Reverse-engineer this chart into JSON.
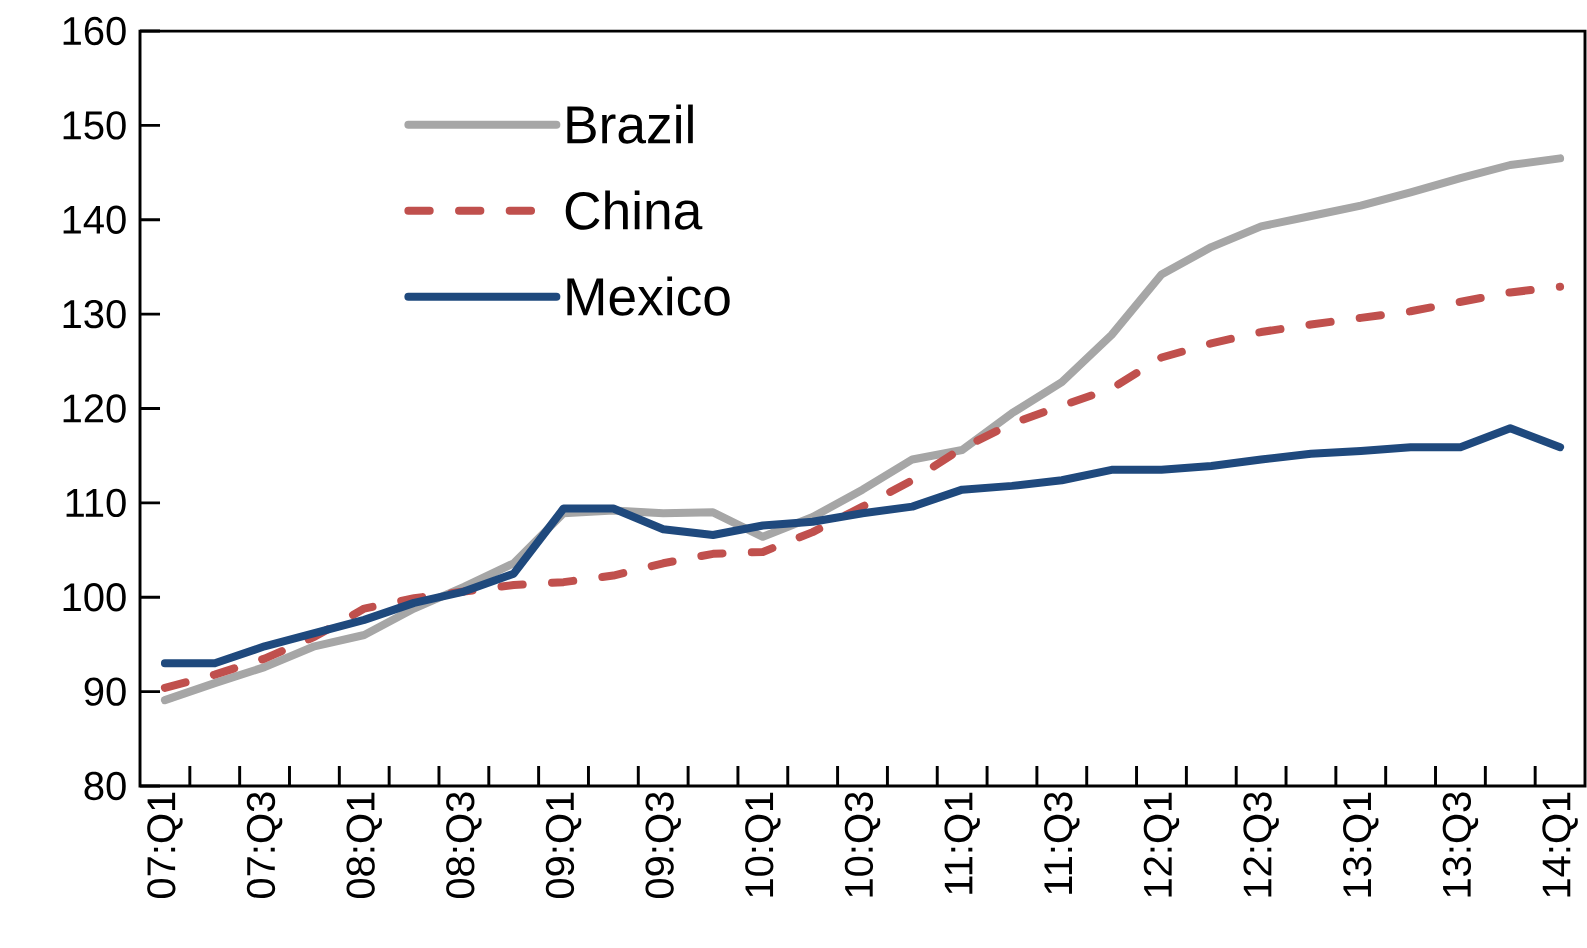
{
  "chart_data": {
    "type": "line",
    "categories": [
      "07:Q1",
      null,
      "07:Q3",
      null,
      "08:Q1",
      null,
      "08:Q3",
      null,
      "09:Q1",
      null,
      "09:Q3",
      null,
      "10:Q1",
      null,
      "10:Q3",
      null,
      "11:Q1",
      null,
      "11:Q3",
      null,
      "12:Q1",
      null,
      "12:Q3",
      null,
      "13:Q1",
      null,
      "13:Q3",
      null,
      "14:Q1"
    ],
    "series": [
      {
        "name": "Brazil",
        "color": "#a6a6a6",
        "line_style": "solid",
        "values": [
          89.1,
          90.9,
          92.6,
          94.8,
          96.0,
          98.8,
          101.1,
          103.6,
          108.9,
          109.2,
          108.9,
          109.0,
          106.4,
          108.5,
          111.4,
          114.6,
          115.6,
          119.5,
          122.8,
          127.8,
          134.2,
          137.1,
          139.3,
          140.4,
          141.5,
          142.9,
          144.4,
          145.8,
          146.5
        ]
      },
      {
        "name": "China",
        "color": "#c0504d",
        "line_style": "dashed",
        "values": [
          90.4,
          91.8,
          93.5,
          95.8,
          98.8,
          99.9,
          100.6,
          101.3,
          101.6,
          102.3,
          103.6,
          104.6,
          104.8,
          106.9,
          109.6,
          112.4,
          115.8,
          118.4,
          120.3,
          122.1,
          125.4,
          126.9,
          128.1,
          128.9,
          129.6,
          130.3,
          131.3,
          132.3,
          132.9
        ]
      },
      {
        "name": "Mexico",
        "color": "#1f497d",
        "line_style": "solid",
        "values": [
          93.0,
          93.0,
          94.8,
          96.2,
          97.6,
          99.4,
          100.6,
          102.5,
          109.4,
          109.4,
          107.2,
          106.6,
          107.6,
          108.0,
          108.9,
          109.6,
          111.4,
          111.8,
          112.4,
          113.5,
          113.5,
          113.9,
          114.6,
          115.2,
          115.5,
          115.9,
          115.9,
          117.9,
          115.9
        ]
      }
    ],
    "ylim": [
      80,
      160
    ],
    "yticks": [
      80,
      90,
      100,
      110,
      120,
      130,
      140,
      150,
      160
    ],
    "legend": "top left",
    "grid": false
  }
}
